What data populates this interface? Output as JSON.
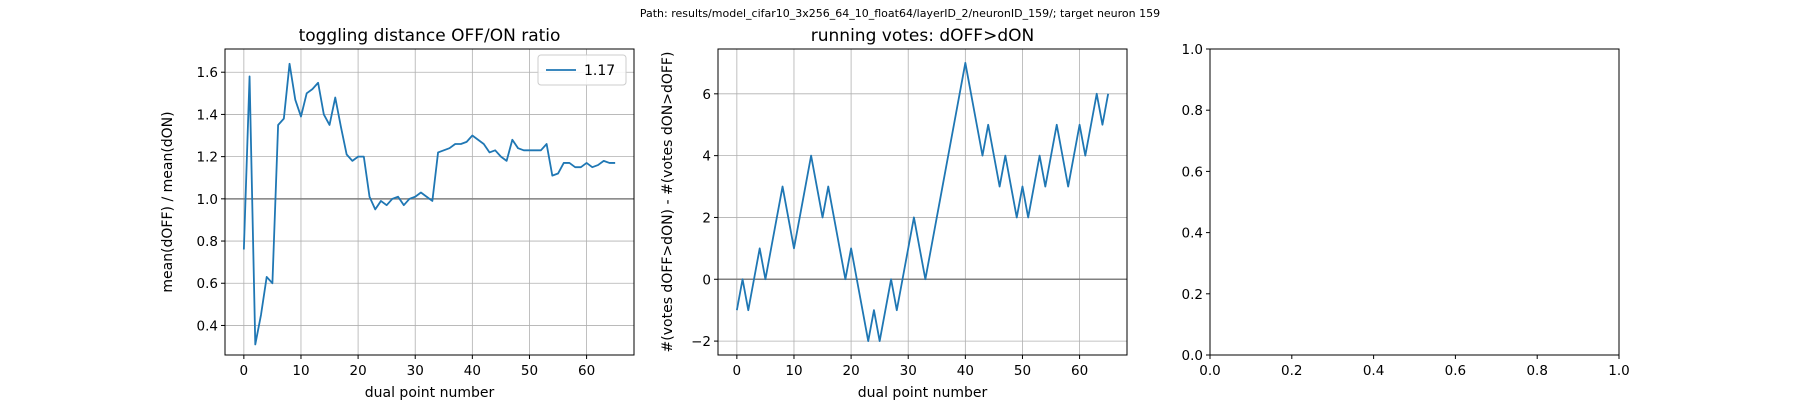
{
  "suptitle": "Path: results/model_cifar10_3x256_64_10_float64/layerID_2/neuronID_159/; target neuron 159",
  "chart_data": [
    {
      "type": "line",
      "title": "toggling distance OFF/ON ratio",
      "xlabel": "dual point number",
      "ylabel": "mean(dOFF) / mean(dON)",
      "xlim": [
        -3.3,
        68.3
      ],
      "ylim": [
        0.26,
        1.71
      ],
      "xticks": [
        0,
        10,
        20,
        30,
        40,
        50,
        60
      ],
      "yticks": [
        0.4,
        0.6,
        0.8,
        1.0,
        1.2,
        1.4,
        1.6
      ],
      "ytick_labels": [
        "0.4",
        "0.6",
        "0.8",
        "1.0",
        "1.2",
        "1.4",
        "1.6"
      ],
      "grid": true,
      "hline": 1.0,
      "legend": {
        "position": "top-right",
        "entries": [
          "1.17"
        ]
      },
      "series": [
        {
          "name": "1.17",
          "color": "#1f77b4",
          "x": [
            0,
            1,
            2,
            3,
            4,
            5,
            6,
            7,
            8,
            9,
            10,
            11,
            12,
            13,
            14,
            15,
            16,
            17,
            18,
            19,
            20,
            21,
            22,
            23,
            24,
            25,
            26,
            27,
            28,
            29,
            30,
            31,
            32,
            33,
            34,
            35,
            36,
            37,
            38,
            39,
            40,
            41,
            42,
            43,
            44,
            45,
            46,
            47,
            48,
            49,
            50,
            51,
            52,
            53,
            54,
            55,
            56,
            57,
            58,
            59,
            60,
            61,
            62,
            63,
            64,
            65
          ],
          "y": [
            0.76,
            1.58,
            0.31,
            0.45,
            0.63,
            0.6,
            1.35,
            1.38,
            1.64,
            1.47,
            1.39,
            1.5,
            1.52,
            1.55,
            1.4,
            1.35,
            1.48,
            1.34,
            1.21,
            1.18,
            1.2,
            1.2,
            1.01,
            0.95,
            0.99,
            0.97,
            1.0,
            1.01,
            0.97,
            1.0,
            1.01,
            1.03,
            1.01,
            0.99,
            1.22,
            1.23,
            1.24,
            1.26,
            1.26,
            1.27,
            1.3,
            1.28,
            1.26,
            1.22,
            1.23,
            1.2,
            1.18,
            1.28,
            1.24,
            1.23,
            1.23,
            1.23,
            1.23,
            1.26,
            1.11,
            1.12,
            1.17,
            1.17,
            1.15,
            1.15,
            1.17,
            1.15,
            1.16,
            1.18,
            1.17,
            1.17
          ]
        }
      ]
    },
    {
      "type": "line",
      "title": "running votes: dOFF>dON",
      "xlabel": "dual point number",
      "ylabel": "#(votes dOFF>dON) - #(votes dON>dOFF)",
      "xlim": [
        -3.3,
        68.3
      ],
      "ylim": [
        -2.45,
        7.45
      ],
      "xticks": [
        0,
        10,
        20,
        30,
        40,
        50,
        60
      ],
      "yticks": [
        -2,
        0,
        2,
        4,
        6
      ],
      "ytick_labels": [
        "−2",
        "0",
        "2",
        "4",
        "6"
      ],
      "grid": true,
      "hline": 0,
      "series": [
        {
          "color": "#1f77b4",
          "x": [
            0,
            1,
            2,
            3,
            4,
            5,
            6,
            7,
            8,
            9,
            10,
            11,
            12,
            13,
            14,
            15,
            16,
            17,
            18,
            19,
            20,
            21,
            22,
            23,
            24,
            25,
            26,
            27,
            28,
            29,
            30,
            31,
            32,
            33,
            34,
            35,
            36,
            37,
            38,
            39,
            40,
            41,
            42,
            43,
            44,
            45,
            46,
            47,
            48,
            49,
            50,
            51,
            52,
            53,
            54,
            55,
            56,
            57,
            58,
            59,
            60,
            61,
            62,
            63,
            64,
            65
          ],
          "y": [
            -1,
            0,
            -1,
            0,
            1,
            0,
            1,
            2,
            3,
            2,
            1,
            2,
            3,
            4,
            3,
            2,
            3,
            2,
            1,
            0,
            1,
            0,
            -1,
            -2,
            -1,
            -2,
            -1,
            0,
            -1,
            0,
            1,
            2,
            1,
            0,
            1,
            2,
            3,
            4,
            5,
            6,
            7,
            6,
            5,
            4,
            5,
            4,
            3,
            4,
            3,
            2,
            3,
            2,
            3,
            4,
            3,
            4,
            5,
            4,
            3,
            4,
            5,
            4,
            5,
            6,
            5,
            6
          ]
        }
      ]
    },
    {
      "type": "line",
      "title": "",
      "xlabel": "",
      "ylabel": "",
      "xlim": [
        0,
        1
      ],
      "ylim": [
        0,
        1
      ],
      "xticks": [
        0,
        0.2,
        0.4,
        0.6,
        0.8,
        1.0
      ],
      "xtick_labels": [
        "0.0",
        "0.2",
        "0.4",
        "0.6",
        "0.8",
        "1.0"
      ],
      "yticks": [
        0,
        0.2,
        0.4,
        0.6,
        0.8,
        1.0
      ],
      "ytick_labels": [
        "0.0",
        "0.2",
        "0.4",
        "0.6",
        "0.8",
        "1.0"
      ],
      "grid": false,
      "series": []
    }
  ]
}
